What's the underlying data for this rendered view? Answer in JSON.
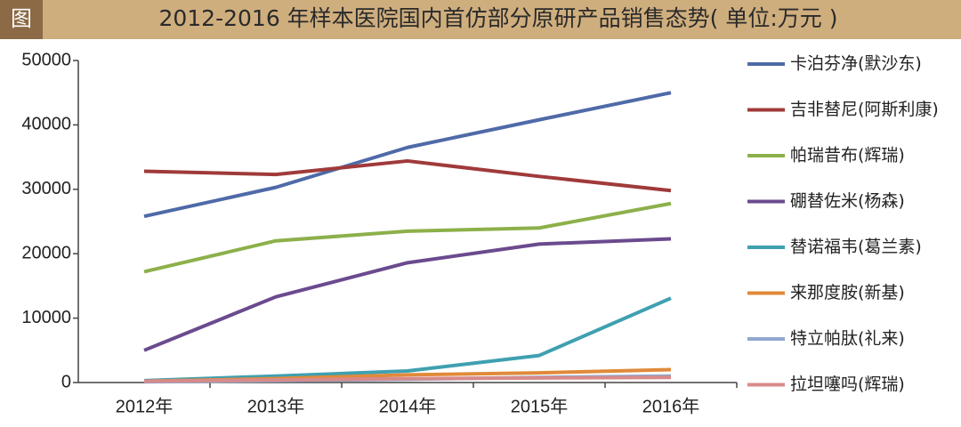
{
  "chart_data": {
    "type": "line",
    "figure_label": "图",
    "title": "2012-2016 年样本医院国内首仿部分原研产品销售态势( 单位:万元 )",
    "categories": [
      "2012年",
      "2013年",
      "2014年",
      "2015年",
      "2016年"
    ],
    "series": [
      {
        "name": "卡泊芬净(默沙东)",
        "color": "#4f6aa8",
        "values": [
          25800,
          30300,
          36500,
          40800,
          45000
        ]
      },
      {
        "name": "吉非替尼(阿斯利康)",
        "color": "#a03a3a",
        "values": [
          32800,
          32300,
          34400,
          32000,
          29800
        ]
      },
      {
        "name": "帕瑞昔布(辉瑞)",
        "color": "#8db04a",
        "values": [
          17200,
          22000,
          23500,
          24000,
          27800
        ]
      },
      {
        "name": "硼替佐米(杨森)",
        "color": "#6b4a8e",
        "values": [
          5000,
          13300,
          18600,
          21500,
          22300
        ]
      },
      {
        "name": "替诺福韦(葛兰素)",
        "color": "#3fa0b0",
        "values": [
          300,
          1000,
          1800,
          4200,
          13100
        ]
      },
      {
        "name": "来那度胺(新基)",
        "color": "#e08a3a",
        "values": [
          200,
          600,
          1200,
          1500,
          2000
        ]
      },
      {
        "name": "特立帕肽(礼来)",
        "color": "#8fa8d0",
        "values": [
          100,
          300,
          500,
          800,
          1000
        ]
      },
      {
        "name": "拉坦噻吗(辉瑞)",
        "color": "#d88a8a",
        "values": [
          200,
          400,
          600,
          700,
          800
        ]
      }
    ],
    "ylim": [
      0,
      50000
    ],
    "yticks": [
      0,
      10000,
      20000,
      30000,
      40000,
      50000
    ],
    "grid": false,
    "legend": "right"
  }
}
